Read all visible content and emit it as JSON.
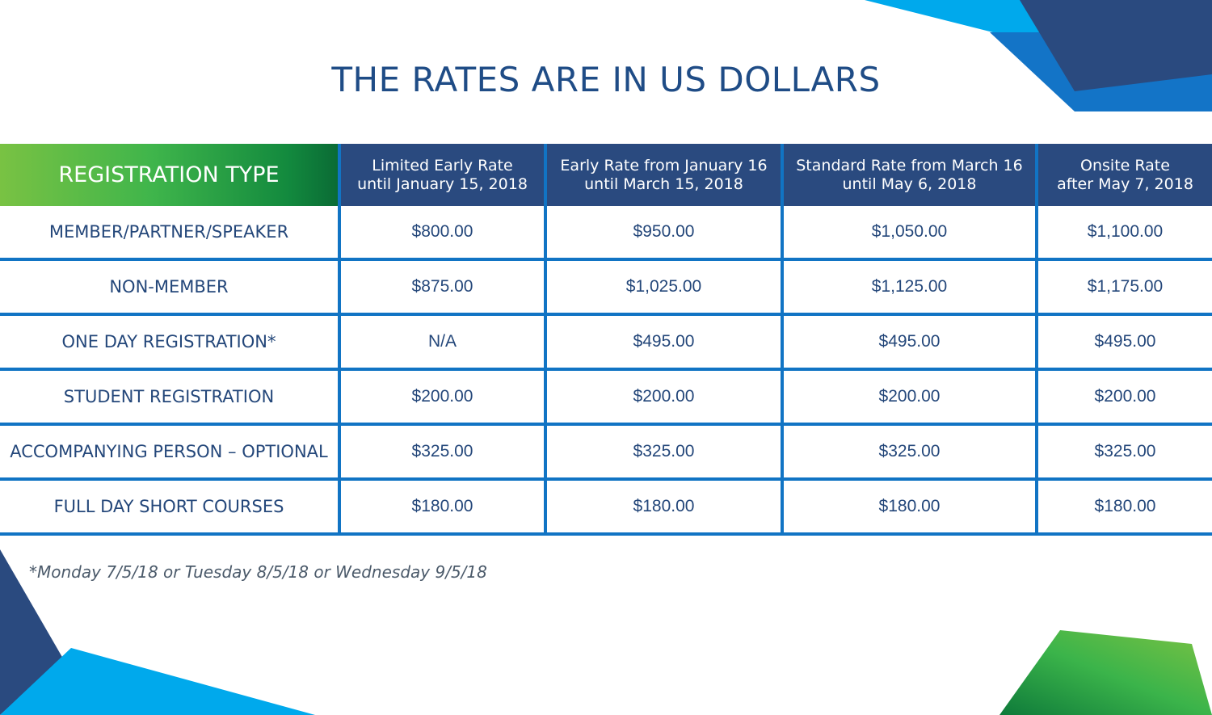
{
  "title": "THE RATES ARE IN US DOLLARS",
  "colors": {
    "navy": "#2a4a7f",
    "blue_rule": "#1174c4",
    "text": "#24477a",
    "green_start": "#79c243",
    "green_end": "#0a6b35",
    "cyan": "#00a9ec"
  },
  "table": {
    "type_header": "REGISTRATION TYPE",
    "columns": [
      {
        "line1": "Limited Early Rate",
        "line2": "until January 15, 2018"
      },
      {
        "line1": "Early Rate from January 16",
        "line2": "until March 15, 2018"
      },
      {
        "line1": "Standard Rate from March 16",
        "line2": "until May 6, 2018"
      },
      {
        "line1": "Onsite Rate",
        "line2": "after May 7, 2018"
      }
    ],
    "rows": [
      {
        "type": "MEMBER/PARTNER/SPEAKER",
        "values": [
          "$800.00",
          "$950.00",
          "$1,050.00",
          "$1,100.00"
        ]
      },
      {
        "type": "NON-MEMBER",
        "values": [
          "$875.00",
          "$1,025.00",
          "$1,125.00",
          "$1,175.00"
        ]
      },
      {
        "type": "ONE DAY REGISTRATION*",
        "values": [
          "N/A",
          "$495.00",
          "$495.00",
          "$495.00"
        ]
      },
      {
        "type": "STUDENT REGISTRATION",
        "values": [
          "$200.00",
          "$200.00",
          "$200.00",
          "$200.00"
        ]
      },
      {
        "type": "ACCOMPANYING PERSON – OPTIONAL",
        "values": [
          "$325.00",
          "$325.00",
          "$325.00",
          "$325.00"
        ]
      },
      {
        "type": "FULL DAY SHORT COURSES",
        "values": [
          "$180.00",
          "$180.00",
          "$180.00",
          "$180.00"
        ]
      }
    ]
  },
  "footnote": "*Monday 7/5/18 or Tuesday 8/5/18 or Wednesday 9/5/18"
}
